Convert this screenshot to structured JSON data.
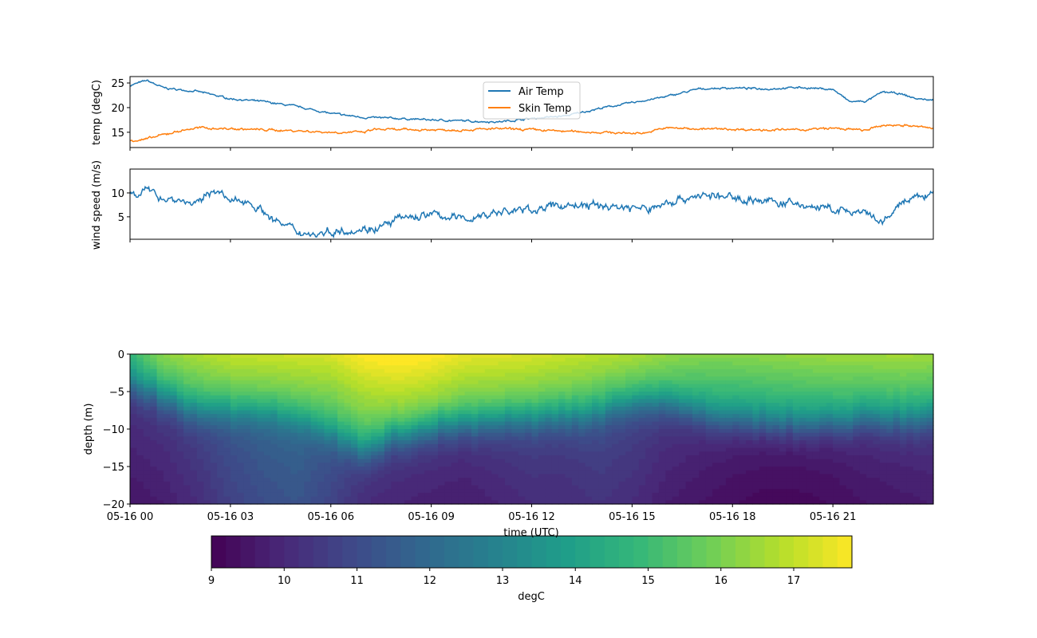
{
  "chart_data": [
    {
      "type": "line",
      "panel": "temperature",
      "ylabel": "temp (degC)",
      "ylim": [
        11.9,
        26.3
      ],
      "yticks": [
        15,
        20,
        25
      ],
      "xlim_hours": [
        0,
        24
      ],
      "legend": {
        "placement": "top-center",
        "entries": [
          "Air Temp",
          "Skin Temp"
        ]
      },
      "series": [
        {
          "name": "Air Temp",
          "color": "#1f77b4",
          "x": [
            0,
            0.5,
            1,
            1.5,
            2,
            3,
            4,
            5,
            6,
            7,
            8,
            9,
            10,
            11,
            12,
            13,
            14,
            15,
            16,
            17,
            18,
            19,
            20,
            21,
            21.5,
            22,
            22.5,
            23,
            23.5,
            24
          ],
          "values": [
            24.5,
            25.5,
            24,
            23.6,
            23.3,
            21.8,
            21.2,
            20.2,
            18.8,
            18,
            17.8,
            17.5,
            17.3,
            17.1,
            17.8,
            18.3,
            19.8,
            21,
            22.2,
            23.8,
            24,
            23.8,
            24.1,
            23.7,
            21.2,
            21.3,
            23.2,
            22.8,
            21.8,
            21.5
          ]
        },
        {
          "name": "Skin Temp",
          "color": "#ff7f0e",
          "x": [
            0,
            0.5,
            1,
            1.5,
            2,
            3,
            4,
            5,
            6,
            7,
            7.3,
            8,
            9,
            10,
            11,
            12,
            13,
            14,
            15,
            15.5,
            16,
            17,
            18,
            19,
            20,
            21,
            22,
            22.5,
            23,
            24
          ],
          "values": [
            13.3,
            13.6,
            14.5,
            15.3,
            15.9,
            15.7,
            15.5,
            15.3,
            15,
            15,
            15.6,
            15.5,
            15.5,
            15.5,
            15.7,
            15.5,
            15.2,
            15,
            14.8,
            15,
            15.9,
            15.7,
            15.6,
            15.5,
            15.5,
            15.8,
            15.4,
            16.4,
            16.5,
            15.8
          ]
        }
      ]
    },
    {
      "type": "line",
      "panel": "wind",
      "ylabel": "wind speed (m/s)",
      "ylim": [
        0.3,
        15
      ],
      "yticks": [
        5,
        10
      ],
      "xlim_hours": [
        0,
        24
      ],
      "series": [
        {
          "name": "Wind Speed",
          "color": "#1f77b4",
          "x": [
            0,
            0.5,
            1,
            1.5,
            2,
            2.5,
            3,
            3.5,
            4,
            4.5,
            5,
            5.5,
            6,
            7,
            7.5,
            8,
            9,
            10,
            11,
            12,
            13,
            14,
            15,
            15.5,
            16,
            17,
            18,
            19,
            20,
            21,
            22,
            22.5,
            23,
            24
          ],
          "values": [
            10,
            10.5,
            9,
            8.5,
            7.5,
            11,
            8,
            8.5,
            6,
            3.5,
            2,
            1.3,
            2,
            2.5,
            2.8,
            4.5,
            5.5,
            4.5,
            6,
            6.5,
            7.5,
            7.3,
            7,
            6.5,
            8,
            9.5,
            9,
            8.3,
            7.5,
            6.5,
            5.5,
            3.5,
            7.8,
            10
          ]
        }
      ]
    },
    {
      "type": "heatmap",
      "panel": "ocean temperature profile",
      "ylabel": "depth (m)",
      "xlabel": "time (UTC)",
      "ylim": [
        -20,
        0
      ],
      "yticks": [
        0,
        -5,
        -10,
        -15,
        -20
      ],
      "xlim_hours": [
        0,
        24
      ],
      "xtick_hours": [
        0,
        3,
        6,
        9,
        12,
        15,
        18,
        21
      ],
      "xtick_labels": [
        "05-16 00",
        "05-16 03",
        "05-16 06",
        "05-16 09",
        "05-16 12",
        "05-16 15",
        "05-16 18",
        "05-16 21"
      ],
      "hours": [
        0,
        1,
        2,
        3,
        4,
        5,
        6,
        7,
        8,
        9,
        10,
        11,
        12,
        13,
        14,
        15,
        16,
        17,
        18,
        19,
        20,
        21,
        22,
        23,
        24
      ],
      "surface_temp": [
        14.5,
        15.8,
        16.2,
        16.5,
        16.6,
        16.7,
        16.8,
        17.4,
        17.6,
        17.4,
        17.0,
        16.9,
        16.8,
        16.6,
        16.4,
        16.2,
        15.9,
        15.7,
        15.7,
        15.8,
        15.9,
        16.0,
        16.0,
        16.1,
        16.0
      ],
      "thermocline_depth": [
        -4,
        -6,
        -8,
        -8,
        -8,
        -9,
        -11,
        -13,
        -11,
        -10,
        -9.5,
        -9,
        -9,
        -8.5,
        -8,
        -6.5,
        -7,
        -8,
        -9,
        -9.5,
        -9.5,
        -9.5,
        -9,
        -9,
        -9
      ],
      "deep_temp": [
        10,
        10.2,
        10.6,
        11.2,
        11.6,
        11.8,
        11.3,
        10.6,
        10.4,
        10.3,
        10.2,
        10.4,
        10.6,
        10.6,
        10.8,
        10.6,
        10.2,
        10,
        9.8,
        9.7,
        9.7,
        9.8,
        10,
        10.1,
        10.2
      ],
      "colorbar": {
        "label": "degC",
        "range": [
          9,
          17.8
        ],
        "ticks": [
          9,
          10,
          11,
          12,
          13,
          14,
          15,
          16,
          17
        ],
        "step": 0.2,
        "colormap": "viridis"
      }
    }
  ]
}
